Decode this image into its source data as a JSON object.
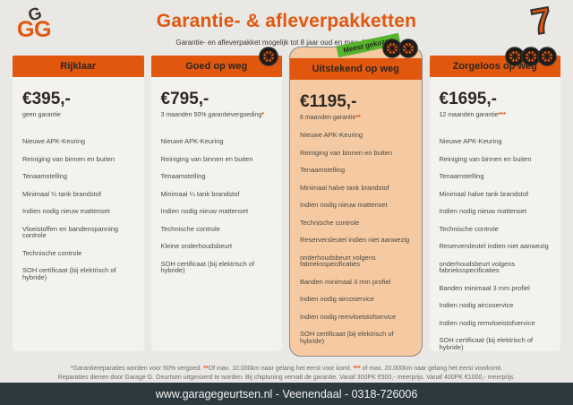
{
  "header": {
    "logo_letters": [
      "G",
      "G",
      "G"
    ],
    "title": "Garantie- & afleverpakketten",
    "subtitle": "Garantie- en afleverpakket mogelijk tot 8 jaar oud en max. 150.000km",
    "corner_numeral": "7"
  },
  "featured_badge": "Meest gekozen",
  "packages": [
    {
      "name": "Rijklaar",
      "price": "€395,-",
      "price_note": "geen garantie",
      "note_marks": "",
      "wheels": 0,
      "featured": false,
      "features": [
        "Nieuwe APK-Keuring",
        "Reiniging van binnen en buiten",
        "Tenaamstelling",
        "Minimaal ¼ tank brandstof",
        "Indien nodig nieuw mattenset",
        "Vloeistoffen en bandenspanning controle",
        "Technische controle",
        "SOH certificaat (bij elektrisch of hybride)"
      ]
    },
    {
      "name": "Goed op weg",
      "price": "€795,-",
      "price_note": "3 maanden 50% garantievergoeding",
      "note_marks": "*",
      "wheels": 1,
      "featured": false,
      "features": [
        "Nieuwe APK-Keuring",
        "Reiniging van binnen en buiten",
        "Tenaamstelling",
        "Minimaal ¼ tank brandstof",
        "Indien nodig nieuw mattenset",
        "Technische controle",
        "Kleine onderhoudsbeurt",
        "SOH certificaat (bij elektrisch of hybride)"
      ]
    },
    {
      "name": "Uitstekend op weg",
      "price": "€1195,-",
      "price_note": "6 maanden garantie",
      "note_marks": "**",
      "wheels": 2,
      "featured": true,
      "features": [
        "Nieuwe APK-Keuring",
        "Reiniging van binnen en buiten",
        "Tenaamstelling",
        "Minimaal halve tank brandstof",
        "Indien nodig nieuw mattenset",
        "Technische controle",
        "Reserversleutel indien niet aanwezig",
        "onderhoudsbeurt volgens fabrieksspecificaties",
        "Banden minimaal 3 mm profiel",
        "Indien nodig aircoservice",
        "Indien nodig remvloeistofservice",
        "SOH certificaat (bij elektrisch of hybride)"
      ]
    },
    {
      "name": "Zorgeloos op weg",
      "price": "€1695,-",
      "price_note": "12 maanden garantie",
      "note_marks": "***",
      "wheels": 3,
      "featured": false,
      "features": [
        "Nieuwe APK-Keuring",
        "Reiniging van binnen en buiten",
        "Tenaamstelling",
        "Minimaal halve tank brandstof",
        "Indien nodig nieuw mattenset",
        "Technische controle",
        "Reserversleutel indien niet aanwezig",
        "onderhoudsbeurt volgens fabrieksspecificaties",
        "Banden minimaal 3 mm profiel",
        "Indien nodig aircoservice",
        "Indien nodig remvloeistofservice",
        "SOH certificaat (bij elektrisch of hybride)"
      ]
    }
  ],
  "footnotes": {
    "line1_segments": [
      {
        "text": "*Garantiereparaties worden voor 50% vergoed. ",
        "highlight": false
      },
      {
        "text": "**",
        "highlight": true
      },
      {
        "text": "Of max. 10.000km naar gelang het eerst voor komt. ",
        "highlight": false
      },
      {
        "text": "***",
        "highlight": true
      },
      {
        "text": " of max. 20.000km naar gelang het eerst voorkomt.",
        "highlight": false
      }
    ],
    "line2": "Reparaties dienen door Garage G. Geurtsen uitgevoerd te worden. Bij chiptuning vervalt de garantie. Vanaf 300PK €500,- meerprijs. Vanaf 400PK €1000,- meerprijs."
  },
  "footer": {
    "text": "www.garagegeurtsen.nl - Veenendaal - 0318-726006"
  },
  "colors": {
    "accent_orange": "#e2570e",
    "featured_bg": "#f5c9a1",
    "badge_green": "#54b42c",
    "footer_bar": "#2c3a40"
  }
}
